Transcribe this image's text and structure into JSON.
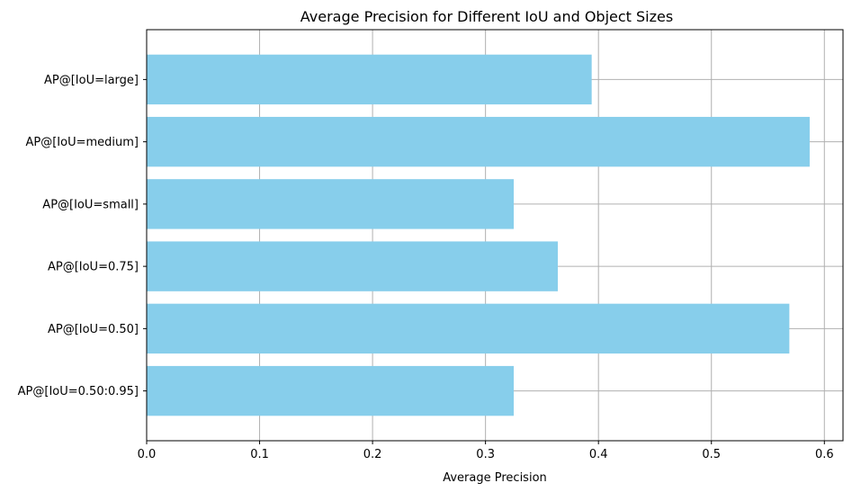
{
  "chart_data": {
    "type": "bar",
    "orientation": "horizontal",
    "title": "Average Precision for Different IoU and Object Sizes",
    "xlabel": "Average Precision",
    "ylabel": "",
    "categories": [
      "AP@[IoU=0.50:0.95]",
      "AP@[IoU=0.50]",
      "AP@[IoU=0.75]",
      "AP@[IoU=small]",
      "AP@[IoU=medium]",
      "AP@[IoU=large]"
    ],
    "values": [
      0.325,
      0.569,
      0.364,
      0.325,
      0.587,
      0.394
    ],
    "xlim": [
      0,
      0.6165
    ],
    "xticks": [
      0.0,
      0.1,
      0.2,
      0.3,
      0.4,
      0.5,
      0.6
    ],
    "xtick_labels": [
      "0.0",
      "0.1",
      "0.2",
      "0.3",
      "0.4",
      "0.5",
      "0.6"
    ],
    "grid": true,
    "bar_color": "#87ceeb",
    "grid_color": "#b0b0b0"
  }
}
